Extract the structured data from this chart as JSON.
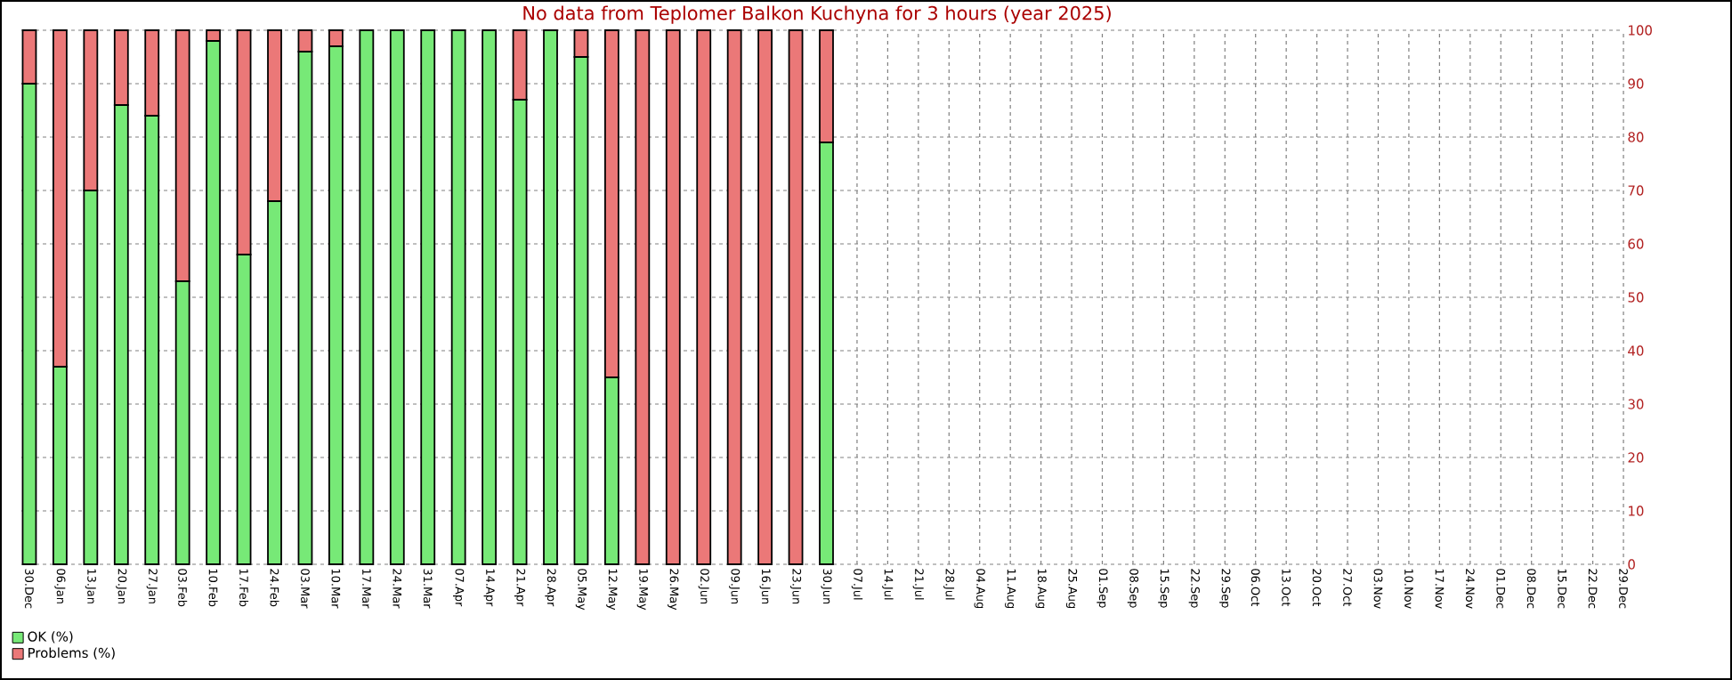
{
  "chart_data": {
    "type": "bar",
    "title": "No data from Teplomer Balkon Kuchyna for 3 hours (year 2025)",
    "stacked": true,
    "categories": [
      "30.Dec",
      "06.Jan",
      "13.Jan",
      "20.Jan",
      "27.Jan",
      "03.Feb",
      "10.Feb",
      "17.Feb",
      "24.Feb",
      "03.Mar",
      "10.Mar",
      "17.Mar",
      "24.Mar",
      "31.Mar",
      "07.Apr",
      "14.Apr",
      "21.Apr",
      "28.Apr",
      "05.May",
      "12.May",
      "19.May",
      "26.May",
      "02.Jun",
      "09.Jun",
      "16.Jun",
      "23.Jun",
      "30.Jun",
      "07.Jul",
      "14.Jul",
      "21.Jul",
      "28.Jul",
      "04.Aug",
      "11.Aug",
      "18.Aug",
      "25.Aug",
      "01.Sep",
      "08.Sep",
      "15.Sep",
      "22.Sep",
      "29.Sep",
      "06.Oct",
      "13.Oct",
      "20.Oct",
      "27.Oct",
      "03.Nov",
      "10.Nov",
      "17.Nov",
      "24.Nov",
      "01.Dec",
      "08.Dec",
      "15.Dec",
      "22.Dec",
      "29.Dec"
    ],
    "series": [
      {
        "name": "OK (%)",
        "color": "#77e977",
        "values": [
          90,
          37,
          70,
          86,
          84,
          53,
          98,
          58,
          68,
          96,
          97,
          100,
          100,
          100,
          100,
          100,
          87,
          100,
          95,
          35,
          0,
          0,
          0,
          0,
          0,
          0,
          79,
          null,
          null,
          null,
          null,
          null,
          null,
          null,
          null,
          null,
          null,
          null,
          null,
          null,
          null,
          null,
          null,
          null,
          null,
          null,
          null,
          null,
          null,
          null,
          null,
          null,
          null
        ]
      },
      {
        "name": "Problems (%)",
        "color": "#eb7878",
        "values": [
          10,
          63,
          30,
          14,
          16,
          47,
          2,
          42,
          32,
          4,
          3,
          0,
          0,
          0,
          0,
          0,
          13,
          0,
          5,
          65,
          100,
          100,
          100,
          100,
          100,
          100,
          21,
          null,
          null,
          null,
          null,
          null,
          null,
          null,
          null,
          null,
          null,
          null,
          null,
          null,
          null,
          null,
          null,
          null,
          null,
          null,
          null,
          null,
          null,
          null,
          null,
          null,
          null
        ]
      }
    ],
    "ylim": [
      0,
      100
    ],
    "yticks": [
      0,
      10,
      20,
      30,
      40,
      50,
      60,
      70,
      80,
      90,
      100
    ],
    "grid": true,
    "legend": "bottom"
  }
}
